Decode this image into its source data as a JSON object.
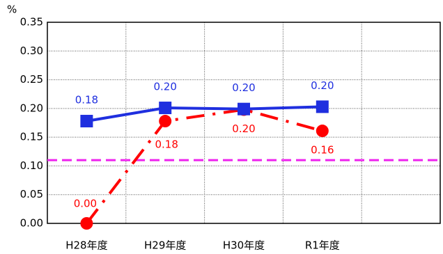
{
  "chart_data": {
    "type": "line",
    "y_label": "%",
    "categories": [
      "H28年度",
      "H29年度",
      "H30年度",
      "R1年度",
      null
    ],
    "series": [
      {
        "color": "#1f2fdf",
        "marker": "square",
        "dash": "solid",
        "values": [
          0.178,
          0.201,
          0.199,
          0.203,
          null
        ],
        "value_labels": [
          "0.18",
          "0.20",
          "0.20",
          "0.20",
          null
        ]
      },
      {
        "color": "#ff0000",
        "marker": "circle",
        "dash": "dashdot",
        "values": [
          0.0,
          0.178,
          0.198,
          0.161,
          null
        ],
        "value_labels": [
          "0.00",
          "0.18",
          "0.20",
          "0.16",
          null
        ]
      }
    ],
    "reference_line": {
      "value": 0.11,
      "color": "#ee22ee"
    },
    "ylim": [
      0,
      0.35
    ],
    "yticks": [
      {
        "value": 0,
        "label": "0.00"
      },
      {
        "value": 0.05,
        "label": "0.05"
      },
      {
        "value": 0.1,
        "label": "0.10"
      },
      {
        "value": 0.15,
        "label": "0.15"
      },
      {
        "value": 0.2,
        "label": "0.20"
      },
      {
        "value": 0.25,
        "label": "0.25"
      },
      {
        "value": 0.3,
        "label": "0.30"
      },
      {
        "value": 0.35,
        "label": "0.35"
      }
    ],
    "grid": true
  }
}
